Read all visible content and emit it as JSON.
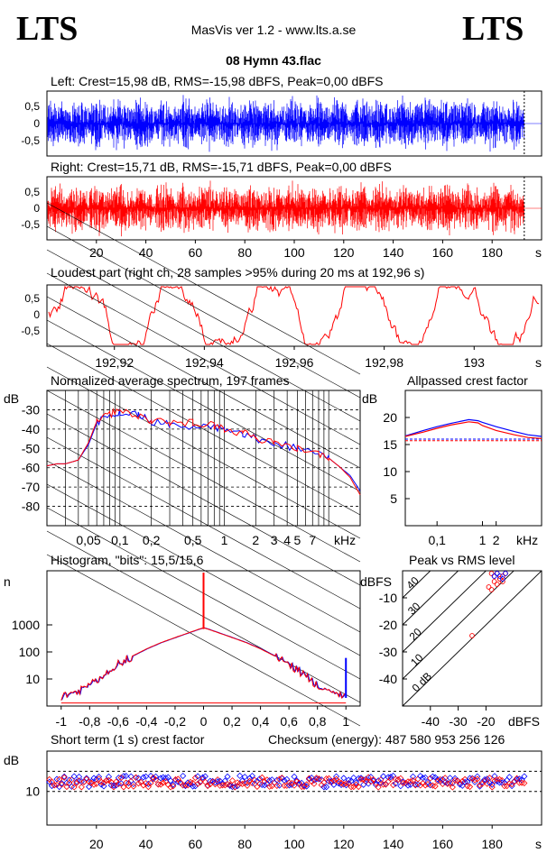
{
  "header": {
    "brand_left": "LTS",
    "brand_right": "LTS",
    "app": "MasVis ver 1.2 - www.lts.a.se",
    "file": "08 Hymn 43.flac"
  },
  "colors": {
    "left": "#0000ff",
    "right": "#ff0000",
    "grid": "#000000"
  },
  "chart_data": [
    {
      "id": "left",
      "type": "area",
      "title": "Left: Crest=15,98 dB, RMS=-15,98 dBFS, Peak=0,00 dBFS",
      "ylim": [
        -1,
        1
      ],
      "yticks": [
        "0,5",
        "0",
        "-0,5"
      ],
      "x_end": 193,
      "ending_marker_at": 193
    },
    {
      "id": "right",
      "type": "area",
      "title": "Right: Crest=15,71 dB, RMS=-15,71 dBFS, Peak=0,00 dBFS",
      "ylim": [
        -1,
        1
      ],
      "yticks": [
        "0,5",
        "0",
        "-0,5"
      ],
      "xticks": [
        "20",
        "40",
        "60",
        "80",
        "100",
        "120",
        "140",
        "160",
        "180"
      ],
      "x_unit": "s",
      "xlim": [
        0,
        200
      ],
      "x_end": 193
    },
    {
      "id": "loudest",
      "type": "line",
      "title": "Loudest part (right ch, 28 samples >95% during 20 ms at 192,96 s)",
      "ylim": [
        -1,
        1
      ],
      "yticks": [
        "0,5",
        "0",
        "-0,5"
      ],
      "xticks": [
        "192,92",
        "192,94",
        "192,96",
        "192,98",
        "193"
      ],
      "x_unit": "s",
      "xlim": [
        192.905,
        193.015
      ]
    },
    {
      "id": "spectrum",
      "type": "line",
      "title": "Normalized average spectrum, 197 frames",
      "ylabel": "dB",
      "yticks": [
        "-30",
        "-40",
        "-50",
        "-60",
        "-70",
        "-80"
      ],
      "ytick_values": [
        -30,
        -40,
        -50,
        -60,
        -70,
        -80
      ],
      "ylim": [
        -90,
        -20
      ],
      "xticks": [
        "0,05",
        "0,1",
        "0,2",
        "0,5",
        "1",
        "2",
        "3",
        "4",
        "5",
        "7"
      ],
      "xtick_values": [
        0.05,
        0.1,
        0.2,
        0.5,
        1,
        2,
        3,
        4,
        5,
        7
      ],
      "x_unit": "kHz",
      "xlim": [
        0.02,
        20
      ],
      "x_scale": "log",
      "series": [
        {
          "name": "",
          "color": "#0000ff",
          "x": [
            0.02,
            0.025,
            0.03,
            0.04,
            0.05,
            0.06,
            0.08,
            0.1,
            0.15,
            0.2,
            0.3,
            0.5,
            0.8,
            1,
            1.5,
            2,
            3,
            5,
            8,
            10,
            13,
            16,
            20
          ],
          "y": [
            -59,
            -58,
            -58,
            -56,
            -48,
            -37,
            -33,
            -31,
            -33,
            -36,
            -38,
            -38,
            -39,
            -41,
            -43,
            -45,
            -47,
            -50,
            -53,
            -55,
            -60,
            -64,
            -72
          ]
        },
        {
          "name": "",
          "color": "#ff0000",
          "x": [
            0.02,
            0.025,
            0.03,
            0.04,
            0.05,
            0.06,
            0.08,
            0.1,
            0.15,
            0.2,
            0.3,
            0.5,
            0.8,
            1,
            1.5,
            2,
            3,
            5,
            8,
            10,
            13,
            16,
            20
          ],
          "y": [
            -59,
            -58,
            -58,
            -56,
            -47,
            -36,
            -32,
            -31,
            -33,
            -36,
            -37,
            -37,
            -38,
            -40,
            -42,
            -45,
            -47,
            -50,
            -53,
            -55,
            -60,
            -65,
            -74
          ]
        }
      ]
    },
    {
      "id": "allpass",
      "type": "line",
      "title": "Allpassed crest factor",
      "ylabel": "dB",
      "yticks": [
        "20",
        "15",
        "10",
        "5"
      ],
      "ytick_values": [
        20,
        15,
        10,
        5
      ],
      "ylim": [
        0,
        25
      ],
      "xticks": [
        "0,1",
        "1",
        "2"
      ],
      "xtick_values": [
        0.1,
        1,
        2
      ],
      "x_unit": "kHz",
      "xlim": [
        0.02,
        20
      ],
      "x_scale": "log",
      "reference_lines": [
        16.0,
        15.7
      ],
      "series": [
        {
          "name": "",
          "color": "#0000ff",
          "x": [
            0.02,
            0.05,
            0.1,
            0.2,
            0.5,
            0.8,
            1,
            2,
            5,
            10,
            20
          ],
          "y": [
            16.6,
            17.6,
            18.3,
            18.9,
            19.6,
            19.4,
            19.1,
            18.3,
            17.4,
            16.8,
            16.5
          ]
        },
        {
          "name": "",
          "color": "#ff0000",
          "x": [
            0.02,
            0.05,
            0.1,
            0.2,
            0.5,
            0.8,
            1,
            2,
            5,
            10,
            20
          ],
          "y": [
            16.5,
            17.3,
            18.0,
            18.6,
            19.2,
            19.0,
            18.5,
            17.6,
            16.8,
            16.3,
            16.1
          ]
        }
      ]
    },
    {
      "id": "histogram",
      "type": "line",
      "title": "Histogram, \"bits\": 15,5/15,6",
      "ylabel": "n",
      "yticks": [
        "1000",
        "100",
        "10"
      ],
      "ytick_values": [
        1000,
        100,
        10
      ],
      "y_scale": "log",
      "ylim": [
        1,
        100000
      ],
      "xticks": [
        "-1",
        "-0,8",
        "-0,6",
        "-0,4",
        "-0,2",
        "0",
        "0,2",
        "0,4",
        "0,6",
        "0,8",
        "1"
      ],
      "xtick_values": [
        -1,
        -0.8,
        -0.6,
        -0.4,
        -0.2,
        0,
        0.2,
        0.4,
        0.6,
        0.8,
        1
      ],
      "xlim": [
        -1.1,
        1.1
      ],
      "series": [
        {
          "name": "",
          "color": "#ff0000",
          "x": [
            -1,
            -0.9,
            -0.8,
            -0.7,
            -0.6,
            -0.5,
            -0.4,
            -0.3,
            -0.2,
            -0.1,
            -0.03,
            0,
            0.03,
            0.1,
            0.2,
            0.3,
            0.4,
            0.5,
            0.6,
            0.7,
            0.8,
            0.9,
            1
          ],
          "y": [
            2,
            3,
            6,
            15,
            35,
            70,
            130,
            220,
            340,
            520,
            700,
            780,
            700,
            520,
            340,
            220,
            130,
            70,
            35,
            15,
            6,
            3,
            2
          ]
        }
      ],
      "peak_at": 0,
      "peak_value": 100000
    },
    {
      "id": "peak_rms",
      "type": "scatter",
      "title": "Peak vs RMS level",
      "ylabel": "dBFS",
      "yticks": [
        "-10",
        "-20",
        "-30",
        "-40"
      ],
      "ytick_values": [
        -10,
        -20,
        -30,
        -40
      ],
      "ylim": [
        -50,
        0
      ],
      "xticks": [
        "-40",
        "-30",
        "-20"
      ],
      "xtick_values": [
        -40,
        -30,
        -20
      ],
      "x_unit": "dBFS",
      "xlim": [
        -50,
        0
      ],
      "diagonal_labels": [
        "40",
        "30",
        "20",
        "10",
        "0 dB"
      ],
      "diagonal_offsets": [
        40,
        30,
        20,
        10,
        0
      ],
      "series": [
        {
          "name": "",
          "color": "#ff0000",
          "x": [
            -18,
            -17,
            -16,
            -15,
            -14,
            -13,
            -17,
            -16,
            -15,
            -14,
            -19,
            -18,
            -25
          ],
          "y": [
            -1,
            -2,
            -1,
            -3,
            -2,
            -1,
            -4,
            -5,
            -3,
            -4,
            -6,
            -7,
            -24
          ]
        },
        {
          "name": "",
          "color": "#0000ff",
          "x": [
            -17,
            -16,
            -15,
            -14,
            -13
          ],
          "y": [
            -2,
            -1,
            -2,
            -3,
            -1
          ]
        }
      ]
    },
    {
      "id": "short_term",
      "type": "scatter",
      "title": "Short term (1 s) crest factor",
      "checksum": "Checksum (energy):   487 580 953 256 126",
      "ylabel": "dB",
      "yticks": [
        "10"
      ],
      "ytick_values": [
        10
      ],
      "ylim": [
        0,
        22
      ],
      "reference_lines": [
        10,
        16
      ],
      "xticks": [
        "20",
        "40",
        "60",
        "80",
        "100",
        "120",
        "140",
        "160",
        "180"
      ],
      "xtick_values": [
        20,
        40,
        60,
        80,
        100,
        120,
        140,
        160,
        180
      ],
      "x_unit": "s",
      "xlim": [
        0,
        200
      ],
      "series_summary": {
        "mean_db": 13,
        "range_db": [
          10.5,
          16
        ]
      }
    }
  ]
}
